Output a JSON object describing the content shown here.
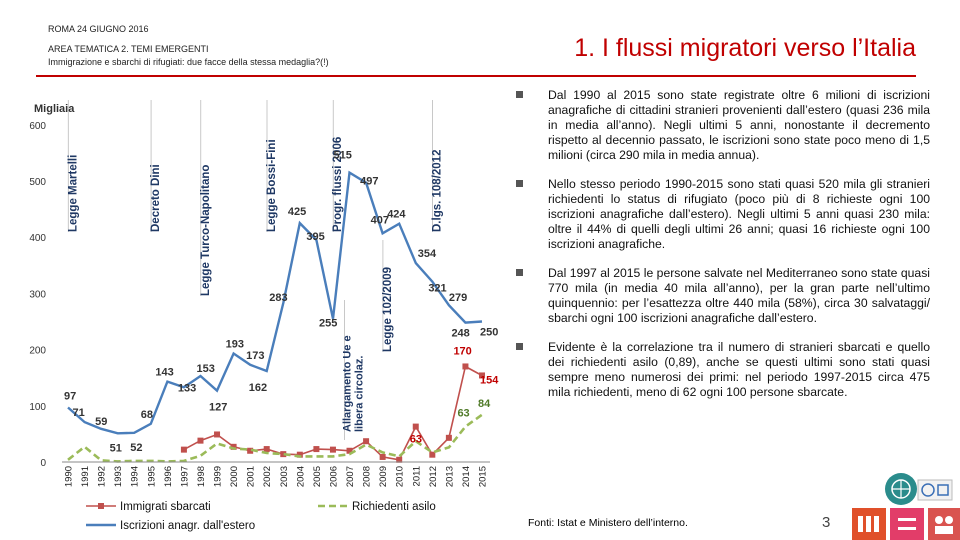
{
  "header": {
    "line1": "ROMA 24 GIUGNO 2016",
    "line2": "AREA TEMATICA 2. TEMI EMERGENTI",
    "line3": "Immigrazione e sbarchi di rifugiati: due facce della stessa medaglia?(!)"
  },
  "slide_title": "1. I flussi migratori verso l’Italia",
  "bullets": [
    "Dal 1990 al 2015 sono state registrate oltre 6 milioni di iscrizioni anagrafiche di cittadini stranieri provenienti dall’estero (quasi 236 mila in media all’anno). Negli ultimi 5 anni, nonostante il decremento rispetto al decennio passato, le iscrizioni sono state poco meno di 1,5 milioni (circa 290 mila in media annua).",
    "Nello stesso periodo 1990-2015 sono stati quasi 520 mila gli stranieri richiedenti lo status di rifugiato (poco più di 8 richieste ogni 100 iscrizioni anagrafiche dall’estero). Negli ultimi 5 anni quasi 230 mila: oltre il 44% di quelli degli ultimi 26 anni; quasi 16 richieste ogni 100 iscrizioni anagrafiche.",
    "Dal 1997 al 2015 le persone salvate nel Mediterraneo sono state quasi 770 mila (in media 40 mila all’anno), per la gran parte nell’ultimo quinquennio: per l’esattezza oltre 440 mila (58%), circa 30 salvataggi/ sbarchi ogni 100 iscrizioni anagrafiche dall’estero.",
    "Evidente è la correlazione tra il numero di stranieri sbarcati e quello dei richiedenti asilo (0,89), anche se questi ultimi sono stati quasi sempre meno numerosi dei primi: nel periodo 1997-2015 circa 475 mila richiedenti, meno di 62 ogni 100 persone sbarcate."
  ],
  "sources": "Fonti: Istat e Ministero dell’interno.",
  "page_number": "3",
  "chart_data": {
    "type": "line",
    "ylabel": "Migliaia",
    "ylim": [
      0,
      600
    ],
    "yticks": [
      0,
      100,
      200,
      300,
      400,
      500,
      600
    ],
    "categories": [
      "1990",
      "1991",
      "1992",
      "1993",
      "1994",
      "1995",
      "1996",
      "1997",
      "1998",
      "1999",
      "2000",
      "2001",
      "2002",
      "2003",
      "2004",
      "2005",
      "2006",
      "2007",
      "2008",
      "2009",
      "2010",
      "2011",
      "2012",
      "2013",
      "2014",
      "2015"
    ],
    "series": [
      {
        "name": "Iscrizioni anagr. dall'estero",
        "color": "#4a7ebb",
        "style": "solid",
        "values": [
          97,
          71,
          59,
          51,
          52,
          68,
          143,
          133,
          153,
          127,
          193,
          173,
          162,
          283,
          425,
          395,
          255,
          515,
          497,
          407,
          424,
          354,
          321,
          279,
          248,
          250
        ]
      },
      {
        "name": "Immigrati sbarcati",
        "color": "#c0504d",
        "style": "markers",
        "values": [
          null,
          null,
          null,
          null,
          null,
          null,
          null,
          22,
          38,
          49,
          27,
          20,
          23,
          14,
          13,
          23,
          22,
          20,
          37,
          9,
          4,
          63,
          13,
          43,
          170,
          154
        ]
      },
      {
        "name": "Richiedenti asilo",
        "color": "#9bbb59",
        "style": "dashed",
        "values": [
          4,
          27,
          3,
          1,
          2,
          2,
          1,
          2,
          11,
          33,
          24,
          22,
          16,
          14,
          10,
          10,
          10,
          14,
          31,
          17,
          10,
          37,
          17,
          26,
          63,
          84
        ]
      }
    ],
    "data_labels": [
      {
        "series": 0,
        "index": 0,
        "text": "97"
      },
      {
        "series": 0,
        "index": 1,
        "text": "71"
      },
      {
        "series": 0,
        "index": 2,
        "text": "59"
      },
      {
        "series": 0,
        "index": 3,
        "text": "51"
      },
      {
        "series": 0,
        "index": 4,
        "text": "52"
      },
      {
        "series": 0,
        "index": 5,
        "text": "68"
      },
      {
        "series": 0,
        "index": 6,
        "text": "143"
      },
      {
        "series": 0,
        "index": 7,
        "text": "133"
      },
      {
        "series": 0,
        "index": 8,
        "text": "153"
      },
      {
        "series": 0,
        "index": 9,
        "text": "127"
      },
      {
        "series": 0,
        "index": 10,
        "text": "193"
      },
      {
        "series": 0,
        "index": 11,
        "text": "173"
      },
      {
        "series": 0,
        "index": 12,
        "text": "162"
      },
      {
        "series": 0,
        "index": 13,
        "text": "283"
      },
      {
        "series": 0,
        "index": 14,
        "text": "425"
      },
      {
        "series": 0,
        "index": 15,
        "text": "395"
      },
      {
        "series": 0,
        "index": 16,
        "text": "255"
      },
      {
        "series": 0,
        "index": 17,
        "text": "515"
      },
      {
        "series": 0,
        "index": 18,
        "text": "497"
      },
      {
        "series": 0,
        "index": 19,
        "text": "407"
      },
      {
        "series": 0,
        "index": 20,
        "text": "424"
      },
      {
        "series": 0,
        "index": 21,
        "text": "354"
      },
      {
        "series": 0,
        "index": 22,
        "text": "321"
      },
      {
        "series": 0,
        "index": 23,
        "text": "279"
      },
      {
        "series": 0,
        "index": 24,
        "text": "248"
      },
      {
        "series": 0,
        "index": 25,
        "text": "250"
      },
      {
        "series": 1,
        "index": 21,
        "text": "63"
      },
      {
        "series": 1,
        "index": 24,
        "text": "170"
      },
      {
        "series": 1,
        "index": 25,
        "text": "154"
      },
      {
        "series": 2,
        "index": 24,
        "text": "63"
      },
      {
        "series": 2,
        "index": 25,
        "text": "84"
      }
    ],
    "annotations": [
      {
        "text": "Legge Martelli",
        "year": "1990"
      },
      {
        "text": "Decreto Dini",
        "year": "1995"
      },
      {
        "text": "Legge Turco-Napolitano",
        "year": "1998"
      },
      {
        "text": "Legge Bossi-Fini",
        "year": "2002"
      },
      {
        "text": "Progr. flussi 2006",
        "year": "2006"
      },
      {
        "text": "Allargamento Ue e libera circolaz.",
        "year": "2007"
      },
      {
        "text": "Legge 102/2009",
        "year": "2009"
      },
      {
        "text": "D.lgs. 108/2012",
        "year": "2012"
      }
    ],
    "legend": [
      {
        "text": "Immigrati sbarcati",
        "series": 1
      },
      {
        "text": "Richiedenti asilo",
        "series": 2
      },
      {
        "text": "Iscrizioni anagr. dall'estero",
        "series": 0
      }
    ],
    "legend_position": "bottom"
  }
}
